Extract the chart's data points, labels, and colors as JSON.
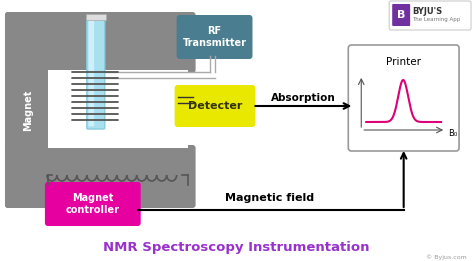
{
  "bg_color": "#ffffff",
  "title": "NMR Spectroscopy Instrumentation",
  "title_color": "#9932CC",
  "title_fontsize": 9.5,
  "magnet_color": "#888888",
  "rf_box_color": "#4a7d90",
  "rf_text": "RF\nTransmitter",
  "detector_color": "#e8e800",
  "detector_text": "Detecter",
  "magnet_controller_color": "#e600a0",
  "magnet_controller_text": "Magnet\ncontroller",
  "absorption_text": "Absorption",
  "magnetic_field_text": "Magnetic field",
  "magnet_text": "Magnet",
  "printer_text": "Printer",
  "b0_text": "B₀",
  "byju_logo_text": "BYJU'S",
  "byju_sub_text": "The Learning App",
  "copyright_text": "© Byjus.com",
  "tube_color": "#a8e0f0",
  "tube_highlight": "#daf5ff",
  "coil_color": "#555555",
  "peak_color": "#dd0077"
}
